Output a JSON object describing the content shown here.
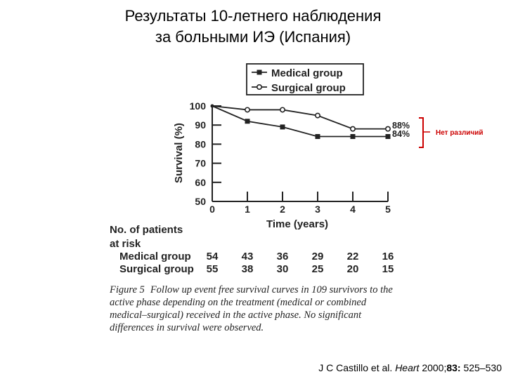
{
  "slide": {
    "title_line1": "Результаты 10-летнего наблюдения",
    "title_line2": "за больными ИЭ (Испания)",
    "annotation": "Нет различий",
    "annotation_color": "#cc0000"
  },
  "chart_data": {
    "type": "line",
    "x": [
      0,
      1,
      2,
      3,
      4,
      5
    ],
    "xlabel": "Time (years)",
    "ylabel": "Survival (%)",
    "xlim": [
      0,
      5
    ],
    "ylim": [
      50,
      100
    ],
    "x_ticks": [
      "0",
      "1",
      "2",
      "3",
      "4",
      "5"
    ],
    "y_ticks": [
      "50",
      "60",
      "70",
      "80",
      "90",
      "100"
    ],
    "legend_position": "top",
    "series": [
      {
        "name": "Medical group",
        "marker": "filled-square",
        "values": [
          100,
          92,
          89,
          84,
          84,
          84
        ],
        "end_label": "84%"
      },
      {
        "name": "Surgical group",
        "marker": "open-circle",
        "values": [
          100,
          98,
          98,
          95,
          88,
          88
        ],
        "end_label": "88%"
      }
    ]
  },
  "risk_table": {
    "heading_line1": "No. of patients",
    "heading_line2": "at risk",
    "rows": [
      {
        "label": "Medical group",
        "values": [
          "54",
          "43",
          "36",
          "29",
          "22",
          "16"
        ]
      },
      {
        "label": "Surgical group",
        "values": [
          "55",
          "38",
          "30",
          "25",
          "20",
          "15"
        ]
      }
    ]
  },
  "caption": {
    "figure": "Figure 5",
    "text": "Follow up event free survival curves in 109 survivors to the active phase depending on the treatment (medical or combined medical–surgical) received in the active phase. No significant differences in survival were observed."
  },
  "citation": {
    "authors": "J C Castillo et al.",
    "journal": "Heart",
    "year": "2000;",
    "volume": "83:",
    "pages": "525–530"
  }
}
